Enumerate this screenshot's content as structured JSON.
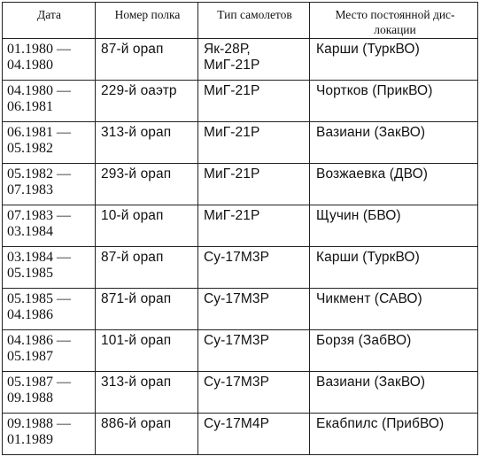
{
  "headers": [
    "Дата",
    "Номер полка",
    "Тип самолетов",
    "Место постоянной дис-\nлокации"
  ],
  "rows": [
    {
      "date_from": "01.1980 —",
      "date_to": "04.1980",
      "regiment": "87-й орап",
      "aircraft": "Як-28Р,\nМиГ-21Р",
      "location": "Карши (ТуркВО)"
    },
    {
      "date_from": "04.1980 —",
      "date_to": "06.1981",
      "regiment": "229-й оаэтр",
      "aircraft": "МиГ-21Р",
      "location": "Чортков (ПрикВО)"
    },
    {
      "date_from": "06.1981 —",
      "date_to": "05.1982",
      "regiment": "313-й орап",
      "aircraft": "МиГ-21Р",
      "location": "Вазиани (ЗакВО)"
    },
    {
      "date_from": "05.1982 —",
      "date_to": "07.1983",
      "regiment": "293-й орап",
      "aircraft": "МиГ-21Р",
      "location": "Возжаевка (ДВО)"
    },
    {
      "date_from": "07.1983 —",
      "date_to": "03.1984",
      "regiment": "10-й орап",
      "aircraft": "МиГ-21Р",
      "location": "Щучин (БВО)"
    },
    {
      "date_from": "03.1984 —",
      "date_to": "05.1985",
      "regiment": "87-й орап",
      "aircraft": "Су-17М3Р",
      "location": "Карши (ТуркВО)"
    },
    {
      "date_from": "05.1985 —",
      "date_to": "04.1986",
      "regiment": "871-й орап",
      "aircraft": "Су-17М3Р",
      "location": "Чикмент (САВО)"
    },
    {
      "date_from": "04.1986 —",
      "date_to": "05.1987",
      "regiment": "101-й орап",
      "aircraft": "Су-17М3Р",
      "location": "Борзя (ЗабВО)"
    },
    {
      "date_from": "05.1987 —",
      "date_to": "09.1988",
      "regiment": "313-й орап",
      "aircraft": "Су-17М3Р",
      "location": "Вазиани (ЗакВО)"
    },
    {
      "date_from": "09.1988 —",
      "date_to": "01.1989",
      "regiment": "886-й орап",
      "aircraft": "Су-17М4Р",
      "location": "Екабпилс (ПрибВО)"
    }
  ]
}
